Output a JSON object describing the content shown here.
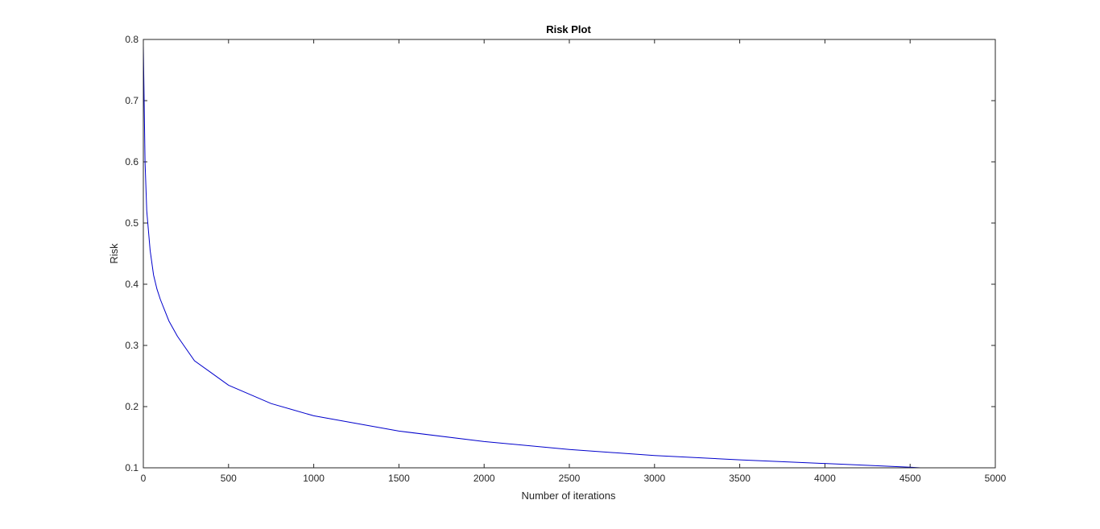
{
  "chart_data": {
    "type": "line",
    "title": "Risk Plot",
    "xlabel": "Number of iterations",
    "ylabel": "Risk",
    "xlim": [
      0,
      5000
    ],
    "ylim": [
      0.1,
      0.8
    ],
    "xticks": [
      0,
      500,
      1000,
      1500,
      2000,
      2500,
      3000,
      3500,
      4000,
      4500,
      5000
    ],
    "yticks": [
      0.1,
      0.2,
      0.3,
      0.4,
      0.5,
      0.6,
      0.7,
      0.8
    ],
    "xtick_labels": [
      "0",
      "500",
      "1000",
      "1500",
      "2000",
      "2500",
      "3000",
      "3500",
      "4000",
      "4500",
      "5000"
    ],
    "ytick_labels": [
      "0.1",
      "0.2",
      "0.3",
      "0.4",
      "0.5",
      "0.6",
      "0.7",
      "0.8"
    ],
    "grid": false,
    "line_color": "#0000cc",
    "series": [
      {
        "x": [
          0,
          10,
          20,
          40,
          60,
          80,
          100,
          150,
          200,
          300,
          400,
          500,
          750,
          1000,
          1500,
          2000,
          2500,
          3000,
          3500,
          4000,
          4500,
          4560
        ],
        "y": [
          0.79,
          0.6,
          0.52,
          0.455,
          0.415,
          0.392,
          0.375,
          0.34,
          0.315,
          0.275,
          0.255,
          0.235,
          0.205,
          0.185,
          0.16,
          0.143,
          0.13,
          0.12,
          0.113,
          0.107,
          0.101,
          0.1
        ]
      }
    ]
  }
}
